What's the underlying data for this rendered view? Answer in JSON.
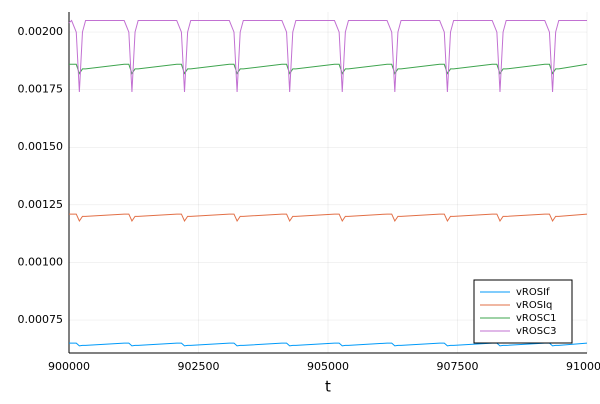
{
  "chart_data": {
    "type": "line",
    "x_label": "t",
    "xlim": [
      900000,
      910000
    ],
    "xticks": [
      900000,
      902500,
      905000,
      907500,
      910000
    ],
    "ylim": [
      0.000607,
      0.002087
    ],
    "yticks": [
      0.00075,
      {
        "value": 0.001,
        "label": "0.00100"
      },
      0.00125,
      {
        "value": 0.0015,
        "label": "0.00150"
      },
      0.00175,
      {
        "value": 0.002,
        "label": "0.00200"
      }
    ],
    "grid": true,
    "legend": "bottom right",
    "x": [
      900000,
      900050,
      900140,
      900200,
      900260,
      900320,
      901065,
      901155,
      901215,
      901275,
      901335,
      902080,
      902170,
      902230,
      902290,
      902350,
      903095,
      903185,
      903245,
      903305,
      903365,
      904110,
      904200,
      904260,
      904320,
      904380,
      905125,
      905215,
      905275,
      905335,
      905395,
      906140,
      906230,
      906290,
      906350,
      906410,
      907155,
      907245,
      907305,
      907365,
      907425,
      908170,
      908260,
      908320,
      908380,
      908440,
      909185,
      909275,
      909335,
      909395,
      909455,
      910000
    ],
    "series": [
      {
        "name": "vROSIf",
        "color": "#009af9",
        "values": [
          0.00065,
          0.00065,
          0.00065,
          0.000638,
          0.00064,
          0.00064,
          0.00065,
          0.00065,
          0.000638,
          0.00064,
          0.00064,
          0.00065,
          0.00065,
          0.000638,
          0.00064,
          0.00064,
          0.00065,
          0.00065,
          0.000638,
          0.00064,
          0.00064,
          0.00065,
          0.00065,
          0.000638,
          0.00064,
          0.00064,
          0.00065,
          0.00065,
          0.000638,
          0.00064,
          0.00064,
          0.00065,
          0.00065,
          0.000638,
          0.00064,
          0.00064,
          0.00065,
          0.00065,
          0.000638,
          0.00064,
          0.00064,
          0.00065,
          0.00065,
          0.000638,
          0.00064,
          0.00064,
          0.00065,
          0.00065,
          0.000638,
          0.00064,
          0.00064,
          0.00065
        ]
      },
      {
        "name": "vROSIq",
        "color": "#e26f46",
        "values": [
          0.00121,
          0.00121,
          0.00121,
          0.00118,
          0.0012,
          0.0012,
          0.00121,
          0.00121,
          0.00118,
          0.0012,
          0.0012,
          0.00121,
          0.00121,
          0.00118,
          0.0012,
          0.0012,
          0.00121,
          0.00121,
          0.00118,
          0.0012,
          0.0012,
          0.00121,
          0.00121,
          0.00118,
          0.0012,
          0.0012,
          0.00121,
          0.00121,
          0.00118,
          0.0012,
          0.0012,
          0.00121,
          0.00121,
          0.00118,
          0.0012,
          0.0012,
          0.00121,
          0.00121,
          0.00118,
          0.0012,
          0.0012,
          0.00121,
          0.00121,
          0.00118,
          0.0012,
          0.0012,
          0.00121,
          0.00121,
          0.00118,
          0.0012,
          0.0012,
          0.00121
        ]
      },
      {
        "name": "vROSC1",
        "color": "#3ea44e",
        "values": [
          0.00186,
          0.00186,
          0.00186,
          0.00182,
          0.00184,
          0.00184,
          0.00186,
          0.00186,
          0.00182,
          0.00184,
          0.00184,
          0.00186,
          0.00186,
          0.00182,
          0.00184,
          0.00184,
          0.00186,
          0.00186,
          0.00182,
          0.00184,
          0.00184,
          0.00186,
          0.00186,
          0.00182,
          0.00184,
          0.00184,
          0.00186,
          0.00186,
          0.00182,
          0.00184,
          0.00184,
          0.00186,
          0.00186,
          0.00182,
          0.00184,
          0.00184,
          0.00186,
          0.00186,
          0.00182,
          0.00184,
          0.00184,
          0.00186,
          0.00186,
          0.00182,
          0.00184,
          0.00184,
          0.00186,
          0.00186,
          0.00182,
          0.00184,
          0.00184,
          0.00186
        ]
      },
      {
        "name": "vROSC3",
        "color": "#c271d2",
        "values": [
          0.00204,
          0.00205,
          0.002,
          0.00174,
          0.002,
          0.00205,
          0.00205,
          0.002,
          0.00174,
          0.002,
          0.00205,
          0.00205,
          0.002,
          0.00174,
          0.002,
          0.00205,
          0.00205,
          0.002,
          0.00174,
          0.002,
          0.00205,
          0.00205,
          0.002,
          0.00174,
          0.002,
          0.00205,
          0.00205,
          0.002,
          0.00174,
          0.002,
          0.00205,
          0.00205,
          0.002,
          0.00174,
          0.002,
          0.00205,
          0.00205,
          0.002,
          0.00174,
          0.002,
          0.00205,
          0.00205,
          0.002,
          0.00174,
          0.002,
          0.00205,
          0.00205,
          0.002,
          0.00174,
          0.002,
          0.00205,
          0.00205
        ]
      }
    ]
  }
}
